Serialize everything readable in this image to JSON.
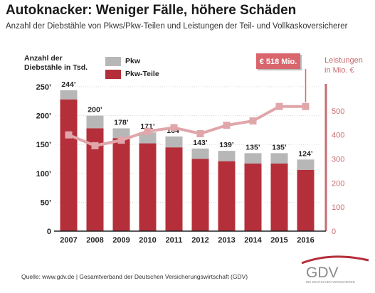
{
  "title": "Autoknacker: Weniger Fälle, höhere Schäden",
  "subtitle": "Anzahl der Diebstähle von Pkws/Pkw-Teilen und Leistungen der Teil- und Vollkaskoversicherer",
  "source": "Quelle: www.gdv.de | Gesamtverband der Deutschen Versicherungswirtschaft (GDV)",
  "logo": {
    "text": "GDV",
    "tagline": "DIE DEUTSCHEN VERSICHERER"
  },
  "colors": {
    "pkw": "#b7b7b7",
    "teile": "#b52f3b",
    "line": "#e0a6aa",
    "label_box": "#d9666d",
    "axis_right": "#c96b71"
  },
  "chart_data": {
    "type": "bar+line",
    "ylabel_left": "Anzahl der\nDiebstähle in Tsd.",
    "ylabel_right": "Leistungen\nin Mio. €",
    "categories": [
      "2007",
      "2008",
      "2009",
      "2010",
      "2011",
      "2012",
      "2013",
      "2014",
      "2015",
      "2016"
    ],
    "y_left_ticks": [
      "0",
      "50’",
      "100’",
      "150’",
      "200’",
      "250’"
    ],
    "ylim_left": [
      0,
      250
    ],
    "y_right_ticks": [
      "0",
      "100",
      "200",
      "300",
      "400",
      "500"
    ],
    "ylim_right": [
      0,
      600
    ],
    "grid": true,
    "legend_position": "top-left",
    "series": [
      {
        "name": "Pkw",
        "values": [
          16,
          22,
          17,
          19,
          19,
          18,
          18,
          18,
          18,
          18
        ]
      },
      {
        "name": "Pkw-Teile",
        "values": [
          228,
          178,
          161,
          152,
          145,
          125,
          121,
          117,
          117,
          106
        ]
      }
    ],
    "total_labels": [
      "244’",
      "200’",
      "178’",
      "171’",
      "164’",
      "143’",
      "139’",
      "135’",
      "135’",
      "124’"
    ],
    "line_series": {
      "values": [
        400,
        355,
        378,
        415,
        430,
        405,
        440,
        458,
        518,
        518
      ]
    },
    "callout": "€ 518 Mio."
  }
}
